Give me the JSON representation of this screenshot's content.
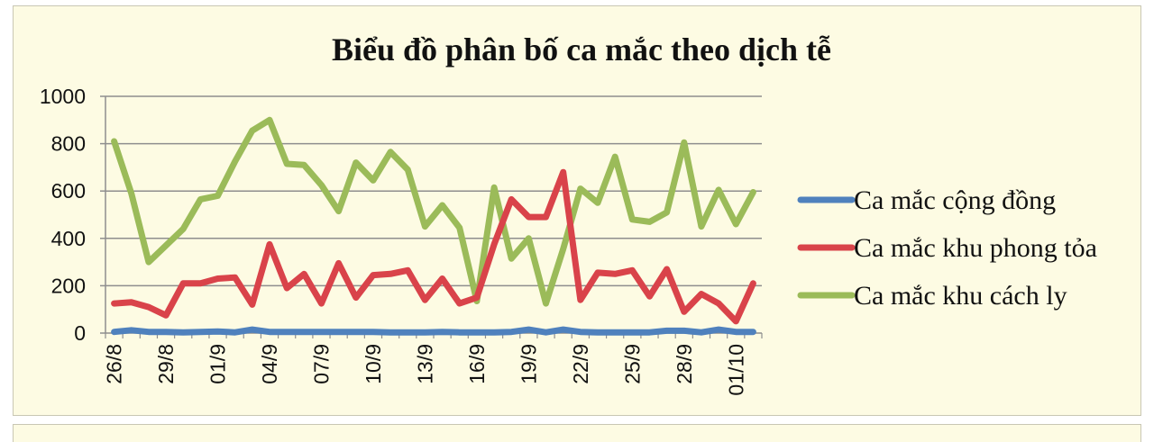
{
  "chart_data": {
    "type": "line",
    "title": "Biểu đồ phân bố ca mắc theo dịch tễ",
    "xlabel": "",
    "ylabel": "",
    "ylim": [
      0,
      1000
    ],
    "yticks": [
      0,
      200,
      400,
      600,
      800,
      1000
    ],
    "grid": true,
    "legend_position": "right",
    "x": [
      "26/8",
      "27/8",
      "28/8",
      "29/8",
      "30/8",
      "31/8",
      "01/9",
      "02/9",
      "03/9",
      "04/9",
      "05/9",
      "06/9",
      "07/9",
      "08/9",
      "09/9",
      "10/9",
      "11/9",
      "12/9",
      "13/9",
      "14/9",
      "15/9",
      "16/9",
      "17/9",
      "18/9",
      "19/9",
      "20/9",
      "21/9",
      "22/9",
      "23/9",
      "24/9",
      "25/9",
      "26/9",
      "27/9",
      "28/9",
      "29/9",
      "30/9",
      "01/10",
      "02/10"
    ],
    "xtick_labels": [
      "26/8",
      "29/8",
      "01/9",
      "04/9",
      "07/9",
      "10/9",
      "13/9",
      "16/9",
      "19/9",
      "22/9",
      "25/9",
      "28/9",
      "01/10"
    ],
    "series": [
      {
        "name": "Ca mắc cộng đồng",
        "color": "#4f81bd",
        "values": [
          5,
          12,
          5,
          5,
          3,
          5,
          7,
          3,
          15,
          5,
          5,
          5,
          5,
          5,
          5,
          5,
          3,
          3,
          3,
          5,
          3,
          3,
          3,
          5,
          15,
          3,
          15,
          5,
          3,
          3,
          3,
          3,
          10,
          10,
          3,
          15,
          5,
          5
        ]
      },
      {
        "name": "Ca mắc khu phong tỏa",
        "color": "#d9434a",
        "values": [
          125,
          130,
          110,
          75,
          210,
          210,
          230,
          235,
          120,
          375,
          190,
          250,
          125,
          295,
          150,
          245,
          250,
          265,
          140,
          230,
          125,
          150,
          375,
          565,
          490,
          490,
          680,
          140,
          255,
          250,
          265,
          155,
          270,
          90,
          165,
          125,
          50,
          210
        ]
      },
      {
        "name": "Ca mắc khu cách ly",
        "color": "#9bbb59",
        "values": [
          810,
          590,
          300,
          370,
          440,
          565,
          580,
          725,
          855,
          900,
          715,
          710,
          625,
          515,
          720,
          645,
          765,
          690,
          450,
          540,
          445,
          135,
          615,
          315,
          400,
          125,
          355,
          610,
          550,
          745,
          480,
          470,
          510,
          805,
          450,
          605,
          460,
          595
        ]
      }
    ]
  }
}
